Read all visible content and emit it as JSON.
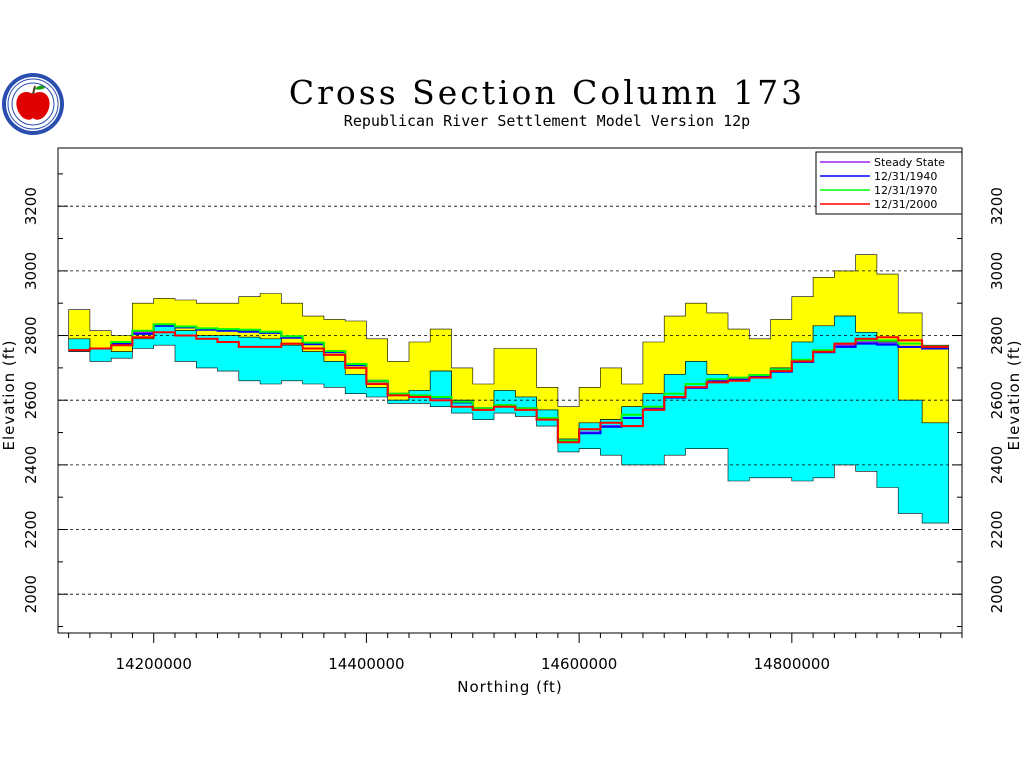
{
  "chart_data": {
    "type": "area",
    "title": "Cross Section Column 173",
    "subtitle": "Republican River Settlement Model Version 12p",
    "xlabel": "Northing (ft)",
    "ylabel": "Elevation (ft)",
    "xlim": [
      14110000,
      14960000
    ],
    "ylim": [
      1880,
      3380
    ],
    "x_ticks": [
      14200000,
      14400000,
      14600000,
      14800000
    ],
    "x_tick_labels": [
      "14200000",
      "14400000",
      "14600000",
      "14800000"
    ],
    "y_ticks": [
      2000,
      2200,
      2400,
      2600,
      2800,
      3000,
      3200
    ],
    "y_tick_labels": [
      "2000",
      "2200",
      "2400",
      "2600",
      "2800",
      "3000",
      "3200"
    ],
    "grid": "dashed horizontal lines at major y ticks",
    "legend_position": "top-right",
    "colors": {
      "land_surface_layer": "#ffff00",
      "aquifer_layer": "#00ffff",
      "steady_state": "#a020f0",
      "d1940": "#0000ff",
      "d1970": "#00ff00",
      "d2000": "#ff0000"
    },
    "layers": {
      "x": [
        14130000,
        14150000,
        14170000,
        14190000,
        14210000,
        14230000,
        14250000,
        14270000,
        14290000,
        14310000,
        14330000,
        14350000,
        14370000,
        14390000,
        14410000,
        14430000,
        14450000,
        14470000,
        14490000,
        14510000,
        14530000,
        14550000,
        14570000,
        14590000,
        14610000,
        14630000,
        14650000,
        14670000,
        14690000,
        14710000,
        14730000,
        14750000,
        14770000,
        14790000,
        14810000,
        14830000,
        14850000,
        14870000,
        14890000,
        14910000,
        14935000
      ],
      "surface_top": [
        2880,
        2815,
        2800,
        2900,
        2915,
        2910,
        2900,
        2900,
        2920,
        2930,
        2900,
        2860,
        2850,
        2845,
        2790,
        2720,
        2780,
        2820,
        2700,
        2650,
        2760,
        2760,
        2640,
        2580,
        2640,
        2700,
        2650,
        2780,
        2860,
        2900,
        2870,
        2820,
        2790,
        2850,
        2920,
        2980,
        3000,
        3050,
        2990,
        2870,
        2770
      ],
      "aquifer_top": [
        2790,
        2760,
        2750,
        2790,
        2830,
        2815,
        2800,
        2800,
        2795,
        2790,
        2770,
        2750,
        2720,
        2680,
        2640,
        2600,
        2630,
        2690,
        2600,
        2570,
        2630,
        2610,
        2570,
        2480,
        2530,
        2540,
        2580,
        2620,
        2680,
        2720,
        2680,
        2660,
        2680,
        2700,
        2780,
        2830,
        2860,
        2810,
        2780,
        2600,
        2530
      ],
      "aquifer_bottom": [
        2750,
        2720,
        2730,
        2760,
        2770,
        2720,
        2700,
        2690,
        2660,
        2650,
        2660,
        2650,
        2640,
        2620,
        2610,
        2590,
        2590,
        2580,
        2560,
        2540,
        2560,
        2550,
        2520,
        2440,
        2450,
        2430,
        2400,
        2400,
        2430,
        2450,
        2450,
        2350,
        2360,
        2360,
        2350,
        2360,
        2400,
        2380,
        2330,
        2250,
        2220
      ]
    },
    "series": [
      {
        "name": "Steady State",
        "x": [
          14130000,
          14150000,
          14170000,
          14190000,
          14210000,
          14230000,
          14250000,
          14270000,
          14290000,
          14310000,
          14330000,
          14350000,
          14370000,
          14390000,
          14410000,
          14430000,
          14450000,
          14470000,
          14490000,
          14510000,
          14530000,
          14550000,
          14570000,
          14590000,
          14610000,
          14630000,
          14650000,
          14670000,
          14690000,
          14710000,
          14730000,
          14750000,
          14770000,
          14790000,
          14810000,
          14830000,
          14850000,
          14870000,
          14890000,
          14910000,
          14935000
        ],
        "y": [
          2755,
          2760,
          2775,
          2810,
          2830,
          2825,
          2820,
          2818,
          2815,
          2810,
          2795,
          2775,
          2750,
          2710,
          2660,
          2620,
          2615,
          2610,
          2595,
          2575,
          2585,
          2575,
          2545,
          2475,
          2500,
          2520,
          2545,
          2575,
          2610,
          2640,
          2660,
          2665,
          2675,
          2690,
          2720,
          2750,
          2770,
          2780,
          2775,
          2765,
          2760
        ]
      },
      {
        "name": "12/31/1940",
        "x": [
          14130000,
          14150000,
          14170000,
          14190000,
          14210000,
          14230000,
          14250000,
          14270000,
          14290000,
          14310000,
          14330000,
          14350000,
          14370000,
          14390000,
          14410000,
          14430000,
          14450000,
          14470000,
          14490000,
          14510000,
          14530000,
          14550000,
          14570000,
          14590000,
          14610000,
          14630000,
          14650000,
          14670000,
          14690000,
          14710000,
          14730000,
          14750000,
          14770000,
          14790000,
          14810000,
          14830000,
          14850000,
          14870000,
          14890000,
          14910000,
          14935000
        ],
        "y": [
          2755,
          2760,
          2775,
          2805,
          2830,
          2825,
          2818,
          2815,
          2812,
          2808,
          2793,
          2773,
          2748,
          2708,
          2658,
          2618,
          2613,
          2608,
          2593,
          2573,
          2583,
          2573,
          2543,
          2473,
          2498,
          2518,
          2545,
          2572,
          2608,
          2638,
          2658,
          2663,
          2673,
          2688,
          2718,
          2748,
          2765,
          2775,
          2772,
          2765,
          2760
        ]
      },
      {
        "name": "12/31/1970",
        "x": [
          14130000,
          14150000,
          14170000,
          14190000,
          14210000,
          14230000,
          14250000,
          14270000,
          14290000,
          14310000,
          14330000,
          14350000,
          14370000,
          14390000,
          14410000,
          14430000,
          14450000,
          14470000,
          14490000,
          14510000,
          14530000,
          14550000,
          14570000,
          14590000,
          14610000,
          14630000,
          14650000,
          14670000,
          14690000,
          14710000,
          14730000,
          14750000,
          14770000,
          14790000,
          14810000,
          14830000,
          14850000,
          14870000,
          14890000,
          14910000,
          14935000
        ],
        "y": [
          2755,
          2760,
          2780,
          2815,
          2835,
          2828,
          2822,
          2820,
          2818,
          2812,
          2798,
          2778,
          2752,
          2712,
          2660,
          2620,
          2615,
          2610,
          2595,
          2575,
          2585,
          2575,
          2545,
          2475,
          2510,
          2530,
          2555,
          2580,
          2620,
          2650,
          2665,
          2670,
          2678,
          2695,
          2725,
          2755,
          2775,
          2785,
          2785,
          2775,
          2765
        ]
      },
      {
        "name": "12/31/2000",
        "x": [
          14130000,
          14150000,
          14170000,
          14190000,
          14210000,
          14230000,
          14250000,
          14270000,
          14290000,
          14310000,
          14330000,
          14350000,
          14370000,
          14390000,
          14410000,
          14430000,
          14450000,
          14470000,
          14490000,
          14510000,
          14530000,
          14550000,
          14570000,
          14590000,
          14610000,
          14630000,
          14650000,
          14670000,
          14690000,
          14710000,
          14730000,
          14750000,
          14770000,
          14790000,
          14810000,
          14830000,
          14850000,
          14870000,
          14890000,
          14910000,
          14935000
        ],
        "y": [
          2755,
          2760,
          2770,
          2795,
          2810,
          2800,
          2790,
          2780,
          2765,
          2765,
          2775,
          2760,
          2740,
          2700,
          2650,
          2615,
          2610,
          2600,
          2580,
          2570,
          2580,
          2570,
          2540,
          2470,
          2510,
          2530,
          2520,
          2570,
          2610,
          2640,
          2655,
          2660,
          2670,
          2690,
          2720,
          2750,
          2775,
          2790,
          2795,
          2785,
          2765
        ]
      }
    ]
  }
}
